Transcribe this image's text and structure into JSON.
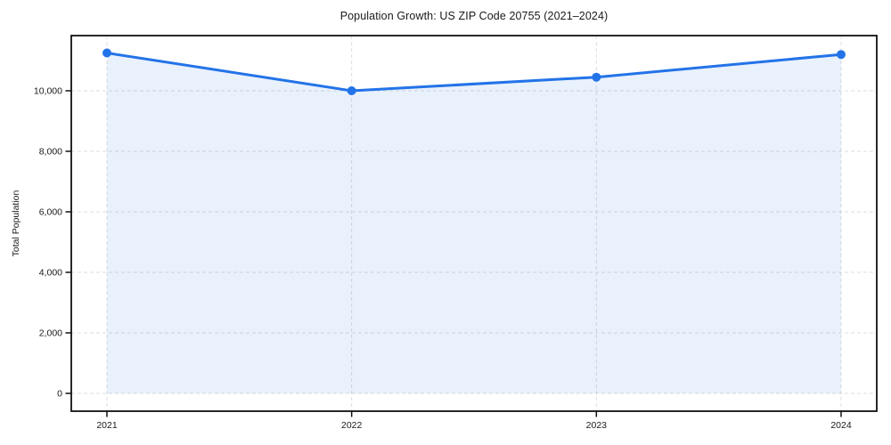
{
  "chart_data": {
    "type": "area",
    "title": "Population Growth: US ZIP Code 20755 (2021–2024)",
    "xlabel": "",
    "ylabel": "Total Population",
    "categories": [
      "2021",
      "2022",
      "2023",
      "2024"
    ],
    "series": [
      {
        "name": "Total Population",
        "values": [
          11250,
          10000,
          10450,
          11200
        ]
      }
    ],
    "ylim": [
      0,
      11800
    ],
    "yticks": [
      0,
      2000,
      4000,
      6000,
      8000,
      10000
    ],
    "ytick_labels": [
      "0",
      "2,000",
      "4,000",
      "6,000",
      "8,000",
      "10,000"
    ],
    "grid": "dashed, horizontal and vertical",
    "legend_position": "none",
    "colors": {
      "line": "#2373e8",
      "marker": "#2373e8",
      "fill": "rgba(35,115,232,0.10)",
      "grid": "#d9d9d9",
      "axis": "#111111",
      "text": "#1a1a1a"
    },
    "marker": "circle"
  }
}
